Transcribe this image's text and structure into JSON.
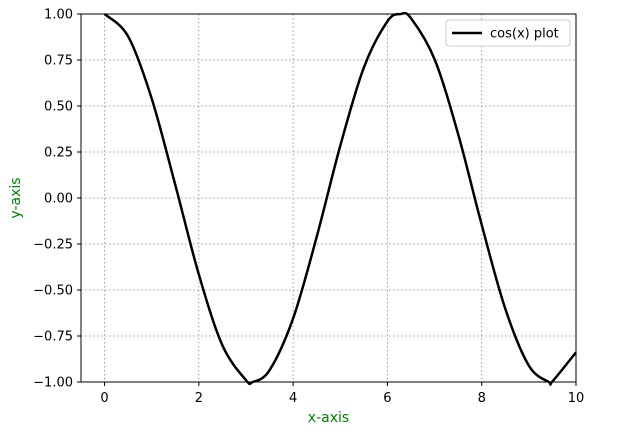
{
  "chart_data": {
    "type": "line",
    "title": "",
    "xlabel": "x-axis",
    "ylabel": "y-axis",
    "label_color": "#008000",
    "xlim": [
      -0.5,
      10
    ],
    "ylim": [
      -1.0,
      1.0
    ],
    "xticks": [
      0,
      2,
      4,
      6,
      8,
      10
    ],
    "xtick_labels": [
      "0",
      "2",
      "4",
      "6",
      "8",
      "10"
    ],
    "yticks": [
      -1.0,
      -0.75,
      -0.5,
      -0.25,
      0.0,
      0.25,
      0.5,
      0.75,
      1.0
    ],
    "ytick_labels": [
      "−1.00",
      "−0.75",
      "−0.50",
      "−0.25",
      "0.00",
      "0.25",
      "0.50",
      "0.75",
      "1.00"
    ],
    "grid": true,
    "grid_style": "dotted",
    "legend_position": "top-right",
    "series": [
      {
        "name": "cos(x) plot",
        "color": "#000000",
        "x": [
          0,
          0.5,
          1,
          1.5,
          2,
          2.5,
          3,
          3.14159,
          3.5,
          4,
          4.5,
          5,
          5.5,
          6,
          6.28318,
          6.5,
          7,
          7.5,
          8,
          8.5,
          9,
          9.42478,
          9.5,
          10
        ],
        "y": [
          1.0,
          0.878,
          0.54,
          0.071,
          -0.416,
          -0.801,
          -0.99,
          -1.0,
          -0.936,
          -0.654,
          -0.211,
          0.284,
          0.709,
          0.96,
          1.0,
          0.977,
          0.754,
          0.347,
          -0.146,
          -0.602,
          -0.911,
          -1.0,
          -0.997,
          -0.839
        ]
      }
    ]
  }
}
